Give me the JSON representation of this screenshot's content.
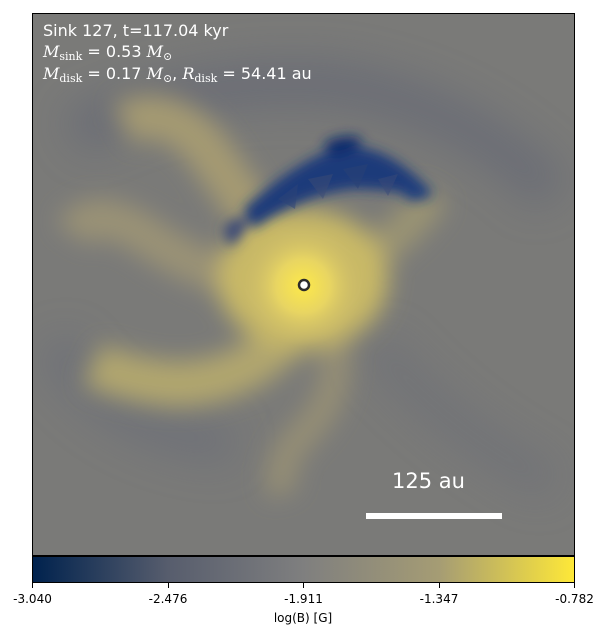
{
  "annotation": {
    "line1": "Sink 127, t=117.04 kyr",
    "msink_symbol": "M",
    "msink_sub": "sink",
    "msink_value": " = 0.53",
    "msink_unit": "M",
    "sun_sub": "⊙",
    "mdisk_symbol": "M",
    "mdisk_sub": "disk",
    "mdisk_value": " = 0.17",
    "mdisk_unit": "M",
    "rdisk_symbol": "R",
    "rdisk_sub": "disk",
    "rdisk_value": " = 54.41",
    "rdisk_unit": "au"
  },
  "scalebar": {
    "label": "125 au"
  },
  "colorbar": {
    "label": "log(B) [G]",
    "ticks": [
      "-3.040",
      "-2.476",
      "-1.911",
      "-1.347",
      "-0.782"
    ],
    "colors": [
      "#00224e",
      "#575d6d",
      "#7f7f7f",
      "#a59c74",
      "#fee838"
    ],
    "colormap": "cividis"
  }
}
